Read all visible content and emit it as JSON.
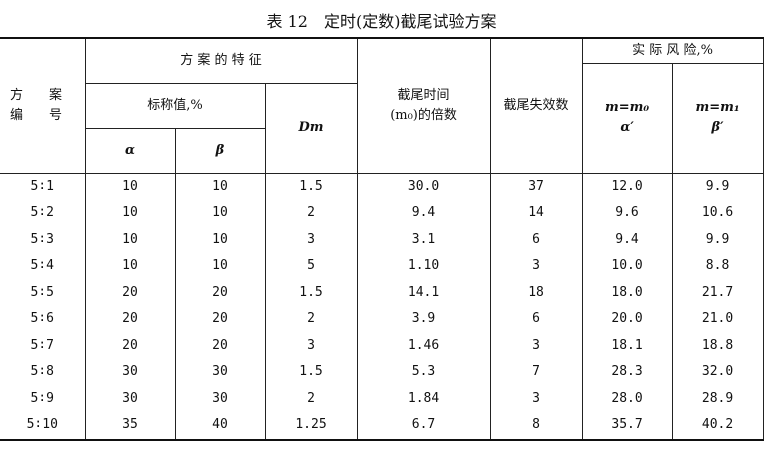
{
  "title": "表 12　定时(定数)截尾试验方案",
  "header": {
    "scheme_no": "方　　案\n编　　号",
    "features": "方 案 的 特 征",
    "nominal": "标称值,%",
    "alpha": "α",
    "beta": "β",
    "dm": "Dm",
    "cut_time": "截尾时间\n(m₀)的倍数",
    "cut_fail": "截尾失效数",
    "risk": "实 际 风 险,%",
    "risk_alpha": "m=m₀\nα′",
    "risk_beta": "m=m₁\nβ′"
  },
  "table": {
    "rows": [
      [
        "5∶1",
        "10",
        "10",
        "1.5",
        "30.0",
        "37",
        "12.0",
        "9.9"
      ],
      [
        "5∶2",
        "10",
        "10",
        "2",
        "9.4",
        "14",
        "9.6",
        "10.6"
      ],
      [
        "5∶3",
        "10",
        "10",
        "3",
        "3.1",
        "6",
        "9.4",
        "9.9"
      ],
      [
        "5∶4",
        "10",
        "10",
        "5",
        "1.10",
        "3",
        "10.0",
        "8.8"
      ],
      [
        "5∶5",
        "20",
        "20",
        "1.5",
        "14.1",
        "18",
        "18.0",
        "21.7"
      ],
      [
        "5∶6",
        "20",
        "20",
        "2",
        "3.9",
        "6",
        "20.0",
        "21.0"
      ],
      [
        "5∶7",
        "20",
        "20",
        "3",
        "1.46",
        "3",
        "18.1",
        "18.8"
      ],
      [
        "5∶8",
        "30",
        "30",
        "1.5",
        "5.3",
        "7",
        "28.3",
        "32.0"
      ],
      [
        "5∶9",
        "30",
        "30",
        "2",
        "1.84",
        "3",
        "28.0",
        "28.9"
      ],
      [
        "5∶10",
        "35",
        "40",
        "1.25",
        "6.7",
        "8",
        "35.7",
        "40.2"
      ]
    ]
  }
}
